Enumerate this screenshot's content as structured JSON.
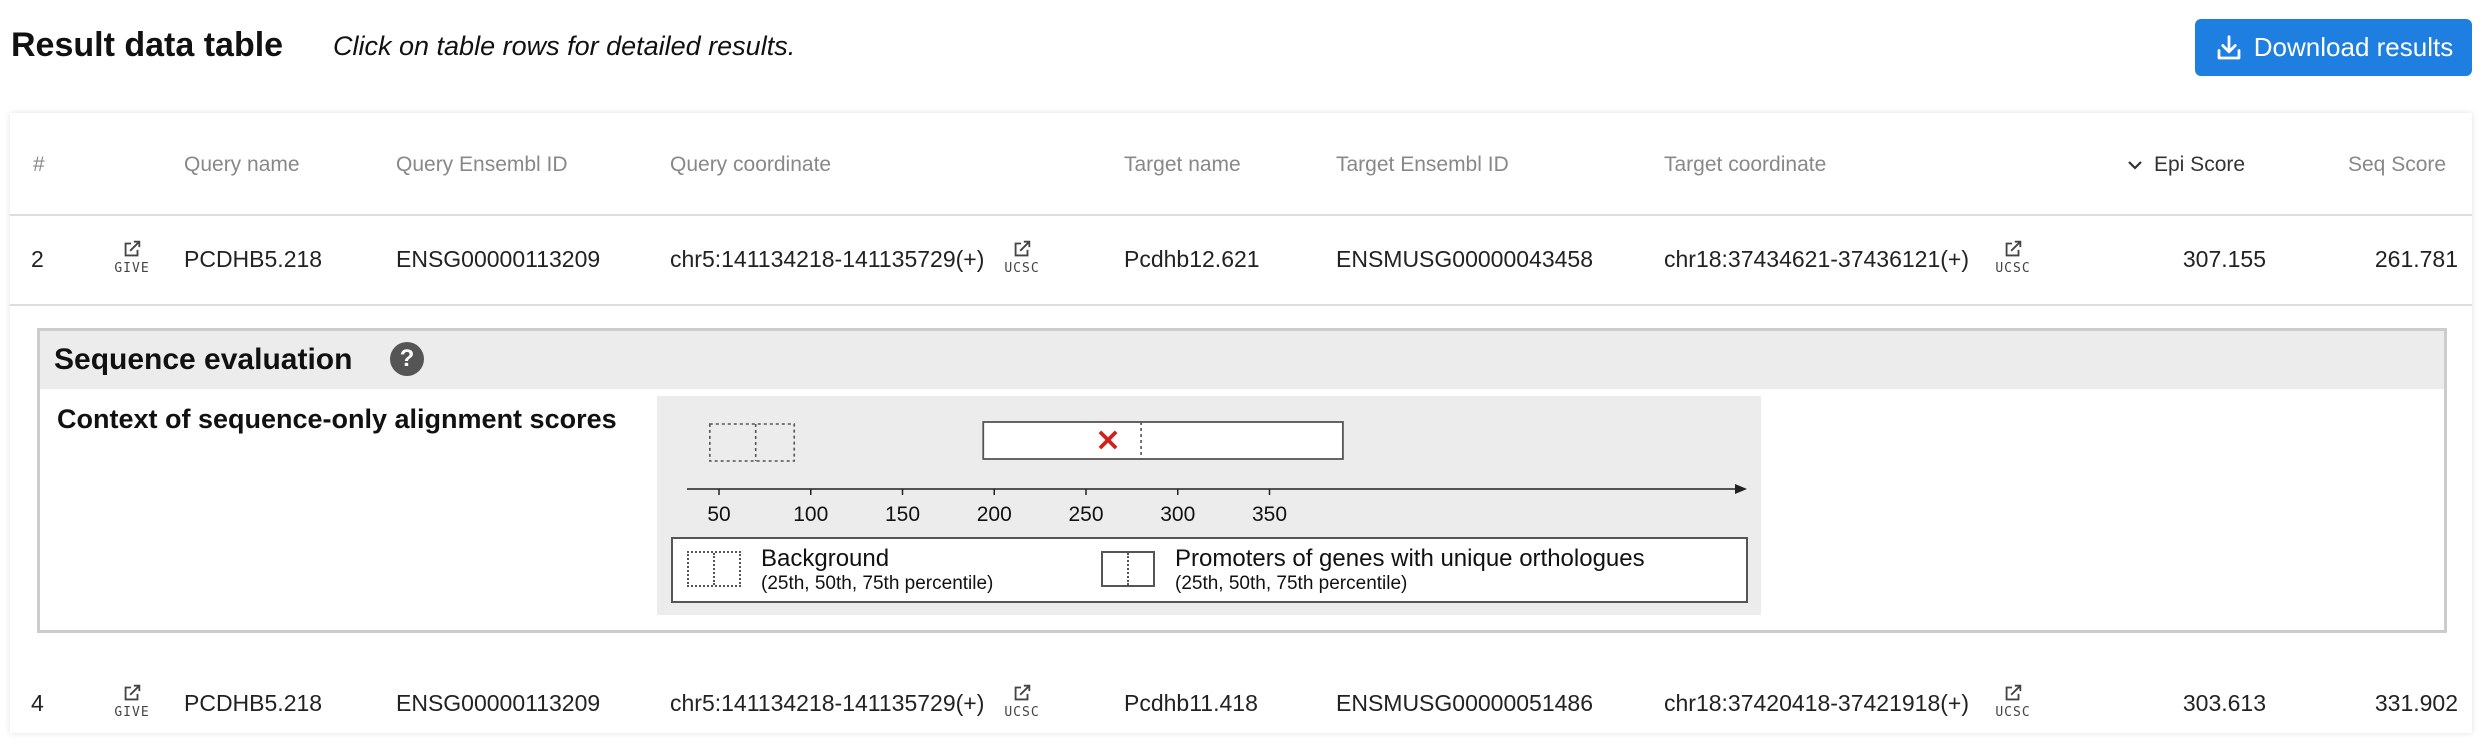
{
  "header": {
    "title": "Result data table",
    "hint": "Click on table rows for detailed results.",
    "download_label": "Download results"
  },
  "table": {
    "columns": [
      "#",
      "Query name",
      "Query Ensembl ID",
      "Query coordinate",
      "Target name",
      "Target Ensembl ID",
      "Target coordinate",
      "Epi Score",
      "Seq Score"
    ],
    "give_label": "GIVE",
    "ucsc_label": "UCSC",
    "rows": [
      {
        "n": "2",
        "query_name": "PCDHB5.218",
        "query_ens": "ENSG00000113209",
        "query_coord": "chr5:141134218-141135729(+)",
        "target_name": "Pcdhb12.621",
        "target_ens": "ENSMUSG00000043458",
        "target_coord": "chr18:37434621-37436121(+)",
        "epi": "307.155",
        "seq": "261.781"
      },
      {
        "n": "4",
        "query_name": "PCDHB5.218",
        "query_ens": "ENSG00000113209",
        "query_coord": "chr5:141134218-141135729(+)",
        "target_name": "Pcdhb11.418",
        "target_ens": "ENSMUSG00000051486",
        "target_coord": "chr18:37420418-37421918(+)",
        "epi": "303.613",
        "seq": "331.902"
      }
    ]
  },
  "sequence_evaluation": {
    "title": "Sequence evaluation",
    "help_glyph": "?",
    "subtitle": "Context of sequence-only alignment scores",
    "chart_data": {
      "type": "boxplot",
      "x_ticks": [
        50,
        100,
        150,
        200,
        250,
        300,
        350
      ],
      "xlim": [
        40,
        395
      ],
      "background": {
        "p25": 45,
        "p50": 70,
        "p75": 91
      },
      "promoters": {
        "p25": 194,
        "p50": 280,
        "p75": 390
      },
      "marker": {
        "value": 262,
        "symbol": "×",
        "color": "#d0211c"
      },
      "legend": [
        {
          "label": "Background",
          "sub": "(25th, 50th, 75th percentile)"
        },
        {
          "label": "Promoters of genes with unique orthologues",
          "sub": "(25th, 50th, 75th percentile)"
        }
      ]
    }
  },
  "colors": {
    "accent": "#1e7fe0",
    "marker": "#d0211c"
  }
}
